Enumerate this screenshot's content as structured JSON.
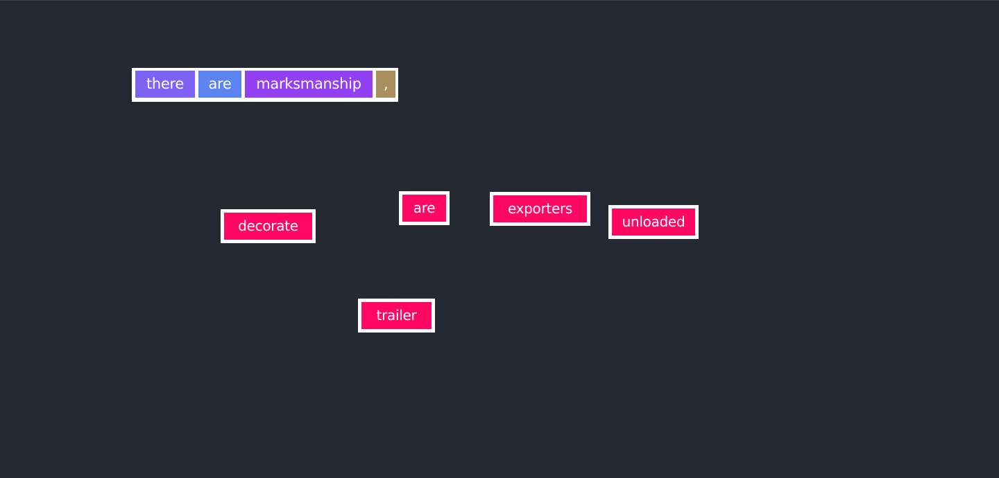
{
  "sentence": {
    "words": [
      {
        "text": "there",
        "color": "#7c63f5"
      },
      {
        "text": "are",
        "color": "#5b83f1"
      },
      {
        "text": "marksmanship",
        "color": "#9340f2"
      },
      {
        "text": ",",
        "color": "#a88e5c"
      }
    ]
  },
  "tiles": [
    {
      "text": "decorate",
      "color": "#ff0763"
    },
    {
      "text": "are",
      "color": "#ff0763"
    },
    {
      "text": "exporters",
      "color": "#ff0763"
    },
    {
      "text": "unloaded",
      "color": "#ff0763"
    },
    {
      "text": "trailer",
      "color": "#ff0763"
    }
  ],
  "theme": {
    "background": "#252931",
    "tile_border": "#ffffff"
  }
}
